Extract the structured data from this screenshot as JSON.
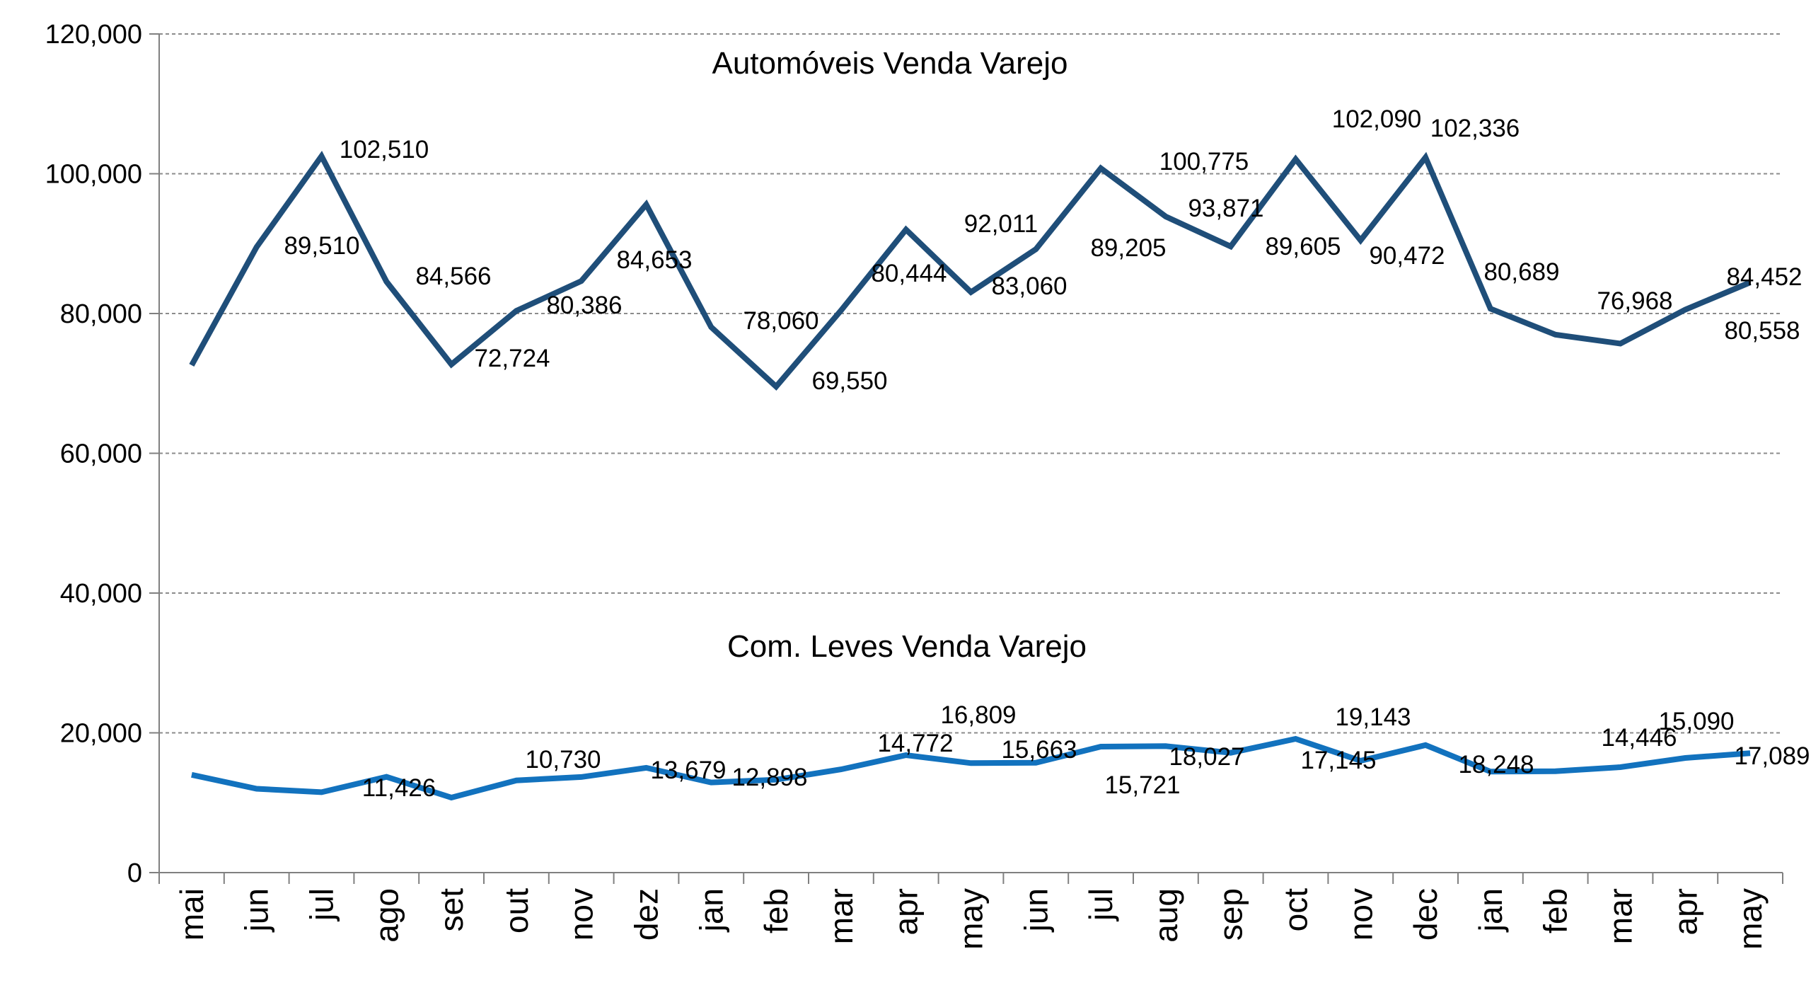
{
  "chart_data": {
    "type": "line",
    "categories": [
      "mai",
      "jun",
      "jul",
      "ago",
      "set",
      "out",
      "nov",
      "dez",
      "jan",
      "feb",
      "mar",
      "apr",
      "may",
      "jun",
      "jul",
      "aug",
      "sep",
      "oct",
      "nov",
      "dec",
      "jan",
      "feb",
      "mar",
      "apr",
      "may"
    ],
    "ylim": [
      0,
      120000
    ],
    "yticks": [
      0,
      20000,
      40000,
      60000,
      80000,
      100000,
      120000
    ],
    "ytick_labels": [
      "0",
      "20,000",
      "40,000",
      "60,000",
      "80,000",
      "100,000",
      "120,000"
    ],
    "grid": true,
    "series": [
      {
        "name": "Automóveis Venda Varejo",
        "color": "#1F4E79",
        "values": [
          72600,
          89510,
          102510,
          84566,
          72724,
          80386,
          84653,
          95600,
          78060,
          69550,
          80444,
          92011,
          83060,
          89205,
          100775,
          93871,
          89605,
          102090,
          90472,
          102336,
          80689,
          76968,
          75700,
          80558,
          84452
        ],
        "data_labels": [
          "89,510",
          "102,510",
          "84,566",
          "72,724",
          "80,386",
          "84,653",
          "78,060",
          "69,550",
          "80,444",
          "92,011",
          "83,060",
          "89,205",
          "100,775",
          "93,871",
          "89,605",
          "102,090",
          "90,472",
          "102,336",
          "80,689",
          "76,968",
          "84,452",
          "80,558"
        ]
      },
      {
        "name": "Com. Leves Venda Varejo",
        "color": "#1272BE",
        "values": [
          14000,
          12000,
          11500,
          13700,
          10730,
          13200,
          13679,
          15000,
          12898,
          13300,
          14772,
          16809,
          15663,
          15721,
          18027,
          18100,
          17145,
          19143,
          16000,
          18248,
          14446,
          14500,
          15090,
          16400,
          17089
        ],
        "data_labels": [
          "11,426",
          "10,730",
          "13,679",
          "12,898",
          "14,772",
          "16,809",
          "15,663",
          "15,721",
          "18,027",
          "17,145",
          "19,143",
          "18,248",
          "14,446",
          "15,090",
          "17,089"
        ]
      }
    ]
  }
}
